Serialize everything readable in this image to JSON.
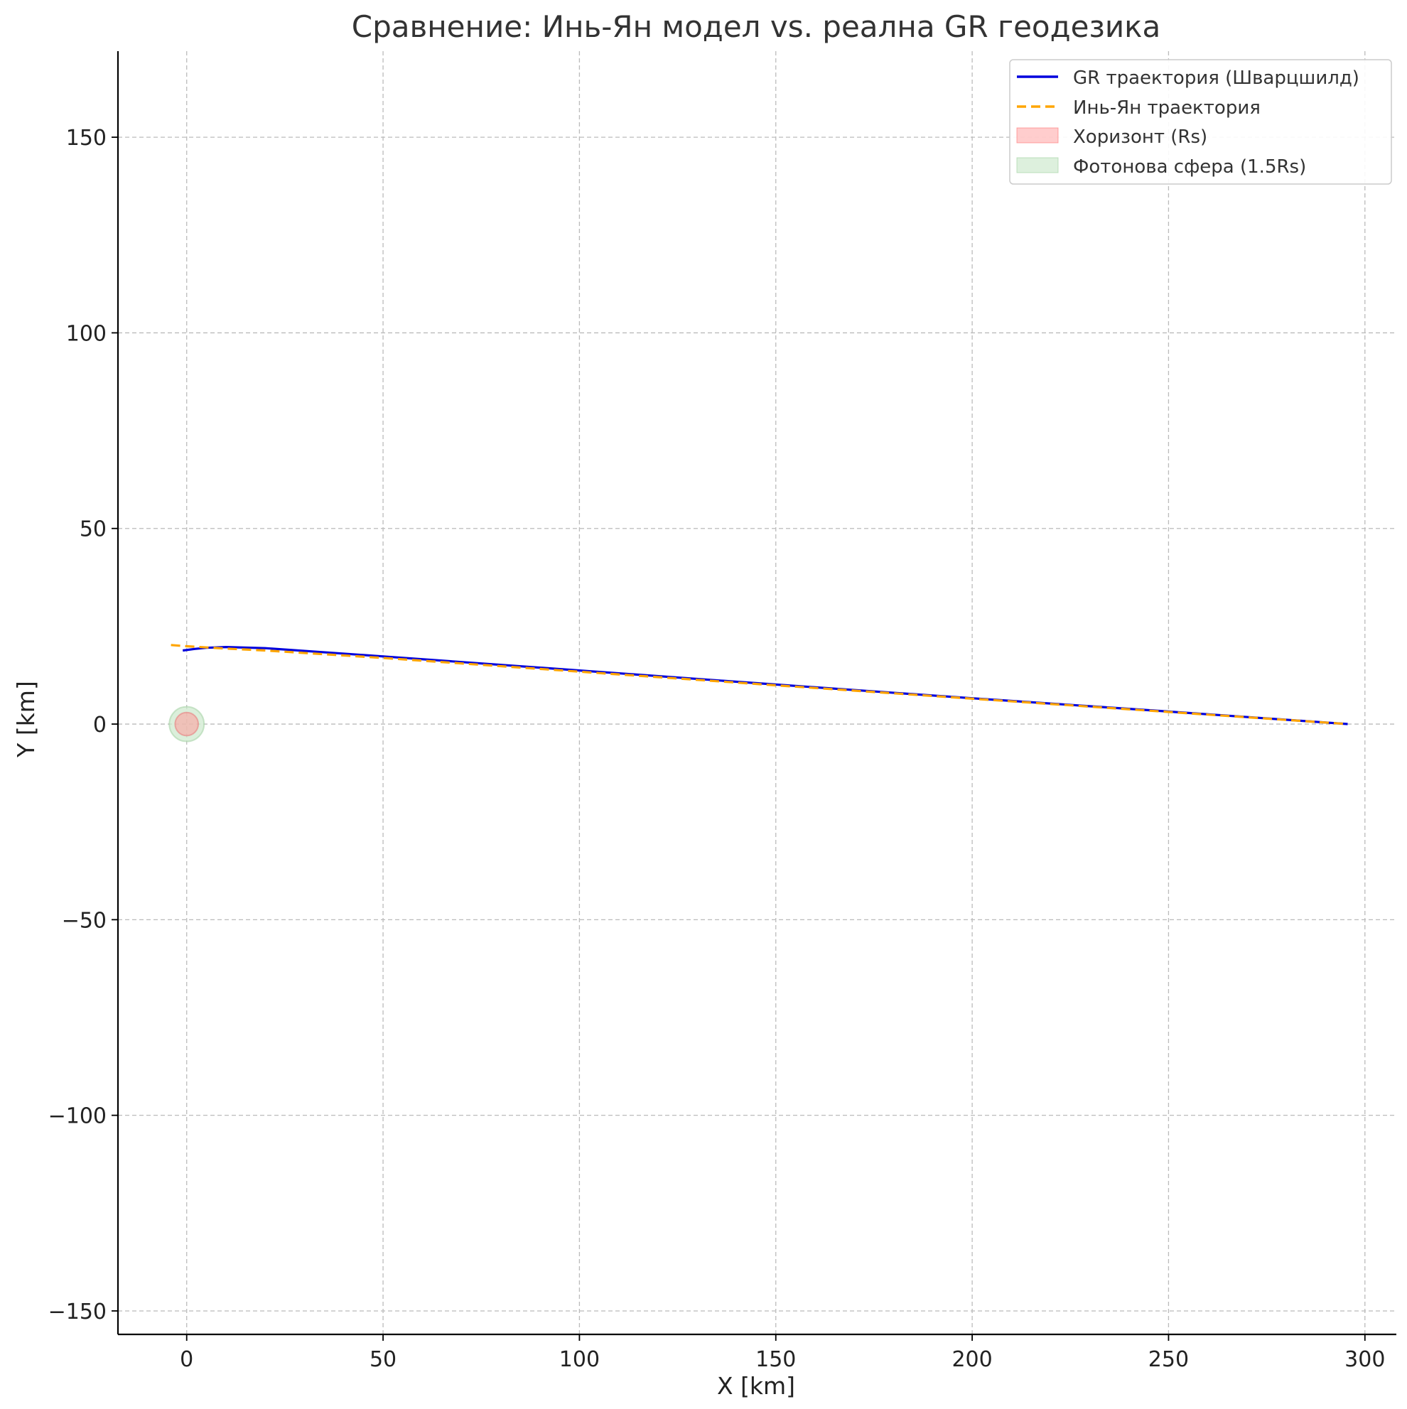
{
  "chart_data": {
    "type": "line",
    "title": "Сравнение: Инь-Ян модел vs. реална GR геодезика",
    "xlabel": "X [km]",
    "ylabel": "Y [km]",
    "xlim": [
      -17.5,
      308
    ],
    "ylim": [
      -156,
      172
    ],
    "xticks": [
      0,
      50,
      100,
      150,
      200,
      250,
      300
    ],
    "yticks": [
      -150,
      -100,
      -50,
      0,
      50,
      100,
      150
    ],
    "xtick_labels": [
      "0",
      "50",
      "100",
      "150",
      "200",
      "250",
      "300"
    ],
    "ytick_labels": [
      "−150",
      "−100",
      "−50",
      "0",
      "50",
      "100",
      "150"
    ],
    "grid": true,
    "legend_position": "top-right",
    "series": [
      {
        "name": "GR траектория (Шварцшилд)",
        "color": "#0000dd",
        "style": "solid",
        "x": [
          -1,
          2,
          5,
          10,
          20,
          50,
          100,
          150,
          200,
          250,
          295.6
        ],
        "y": [
          18.8,
          19.2,
          19.5,
          19.7,
          19.4,
          17.3,
          13.7,
          10.1,
          6.6,
          3.2,
          0
        ]
      },
      {
        "name": "Инь-Ян траектория",
        "color": "#ffa500",
        "style": "dashed",
        "x": [
          -4,
          0,
          10,
          20,
          50,
          100,
          150,
          200,
          250,
          295.6
        ],
        "y": [
          20.2,
          19.9,
          19.3,
          18.8,
          16.9,
          13.4,
          9.9,
          6.5,
          3.1,
          0
        ]
      }
    ],
    "regions": [
      {
        "name": "Хоризонт (Rs)",
        "shape": "circle",
        "center": [
          0,
          0
        ],
        "radius_km": 2.95,
        "color": "#ff9b9b"
      },
      {
        "name": "Фотонова сфера (1.5Rs)",
        "shape": "circle",
        "center": [
          0,
          0
        ],
        "radius_km": 4.43,
        "color": "#cfe9cf"
      }
    ]
  }
}
